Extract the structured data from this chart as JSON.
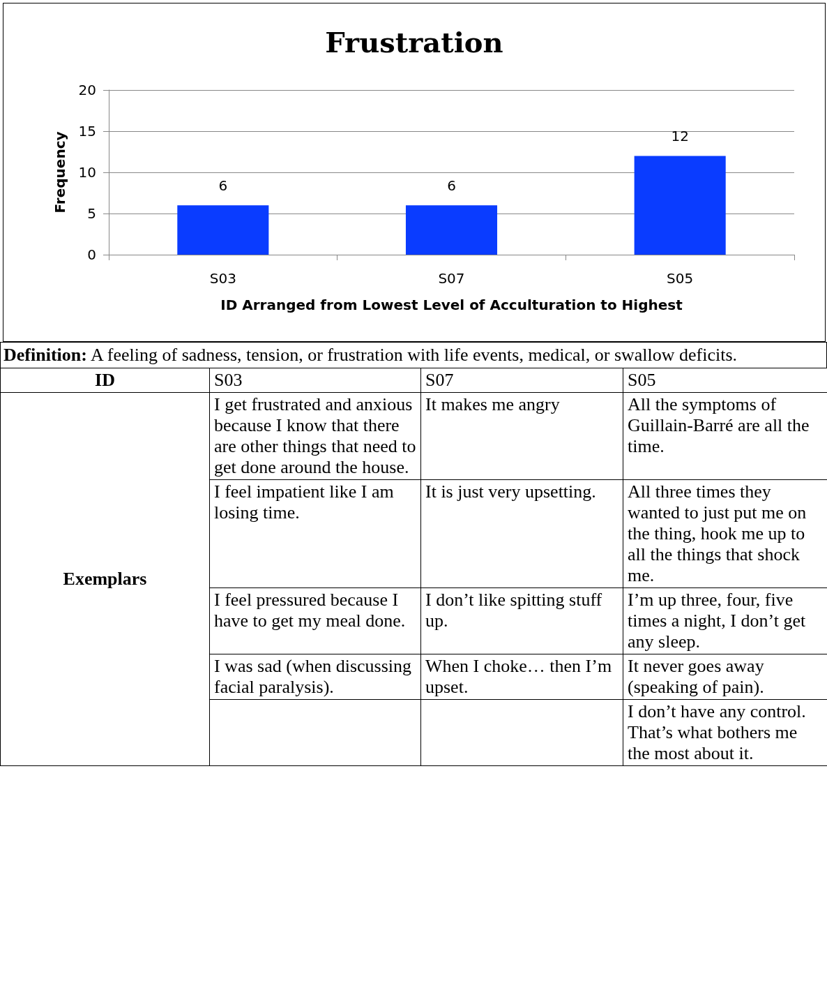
{
  "chart_data": [
    {
      "type": "bar",
      "title": "Frustration",
      "xlabel": "ID Arranged from Lowest Level of Acculturation to Highest",
      "ylabel": "Frequency",
      "categories": [
        "S03",
        "S07",
        "S05"
      ],
      "values": [
        6,
        6,
        12
      ],
      "color": "#0a3cff",
      "ylim": [
        0,
        20
      ],
      "yticks": [
        0,
        5,
        10,
        15,
        20
      ],
      "grid": "y",
      "data_labels": true
    },
    {
      "type": "other",
      "subtitle": "Definition: A feeling of sadness, tension, or frustration with life events, medical, or swallow deficits.",
      "xlabel": "ID",
      "ylabel": "Exemplars",
      "categories": [
        "S03",
        "S07",
        "S05"
      ],
      "cell_labels": [
        [
          "I get frustrated and anxious because I know that there are other things that need to get done around the house.",
          "It makes me angry",
          "All the symptoms of Guillain-Barré are all the time."
        ],
        [
          "I feel impatient like I am losing time.",
          "It is just very upsetting.",
          "All three times they wanted to just put me on the thing, hook me up to all the things that shock me."
        ],
        [
          "I feel pressured because I have to get my meal done.",
          "I don’t like spitting stuff up.",
          "I’m up three, four, five times a night, I don’t get any sleep."
        ],
        [
          "I was sad (when discussing facial paralysis).",
          "When I choke… then I’m upset.",
          "It never goes away (speaking of pain)."
        ],
        [
          null,
          null,
          "I don’t have any control. That’s what bothers me the most about it."
        ]
      ]
    }
  ]
}
